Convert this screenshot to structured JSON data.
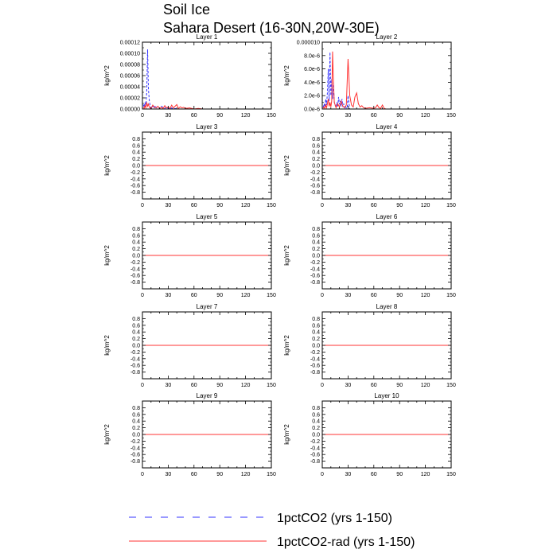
{
  "figure": {
    "title_line1": "Soil Ice",
    "title_line2": "Sahara Desert (16-30N,20W-30E)"
  },
  "legend": {
    "items": [
      {
        "label": "1pctCO2 (yrs 1-150)",
        "color": "#3333ff",
        "style": "dashed"
      },
      {
        "label": "1pctCO2-rad (yrs 1-150)",
        "color": "#ff3333",
        "style": "solid"
      }
    ]
  },
  "chart_data": [
    {
      "type": "line",
      "title": "Layer 1",
      "ylabel": "kg/m^2",
      "xlim": [
        0,
        150
      ],
      "ylim": [
        0,
        0.00012
      ],
      "x_ticks": [
        "0",
        "30",
        "60",
        "90",
        "120",
        "150"
      ],
      "y_ticks": [
        "0.00000",
        "0.00002",
        "0.00004",
        "0.00006",
        "0.00008",
        "0.00010",
        "0.00012"
      ],
      "series": [
        {
          "name": "1pctCO2 (yrs 1-150)",
          "color": "#3333ff",
          "dash": true,
          "x": [
            1,
            2,
            3,
            4,
            5,
            6,
            7,
            8,
            9,
            10,
            11,
            12,
            13,
            14,
            15,
            16,
            18,
            20,
            22,
            24,
            26,
            28,
            30,
            32,
            34,
            36,
            38,
            40,
            45,
            50,
            150
          ],
          "y": [
            8e-06,
            3e-06,
            1.2e-05,
            4e-06,
            3e-05,
            0.000107,
            3.5e-05,
            1.5e-05,
            6e-06,
            2e-06,
            1e-06,
            5e-06,
            4e-06,
            1e-06,
            6e-06,
            2e-06,
            4e-06,
            1e-06,
            5e-06,
            3e-06,
            1e-06,
            4e-06,
            1e-06,
            0,
            2e-06,
            0,
            1e-06,
            0,
            0,
            0,
            0
          ]
        },
        {
          "name": "1pctCO2-rad (yrs 1-150)",
          "color": "#ff3333",
          "dash": false,
          "x": [
            1,
            2,
            3,
            4,
            5,
            6,
            7,
            8,
            9,
            10,
            12,
            14,
            16,
            18,
            20,
            22,
            24,
            26,
            28,
            30,
            32,
            34,
            36,
            38,
            40,
            42,
            44,
            46,
            48,
            50,
            55,
            60,
            65,
            70,
            150
          ],
          "y": [
            3e-06,
            1e-06,
            6e-06,
            2e-06,
            1.2e-05,
            5e-06,
            9e-06,
            3e-06,
            2e-06,
            1e-06,
            7e-06,
            3e-06,
            2e-06,
            5e-06,
            1e-06,
            3e-06,
            1e-06,
            6e-06,
            2e-06,
            4e-06,
            1e-06,
            7e-06,
            2e-06,
            5e-06,
            8e-06,
            1e-06,
            4e-06,
            2e-06,
            3e-06,
            1e-06,
            2e-06,
            0,
            1e-06,
            0,
            0
          ]
        }
      ]
    },
    {
      "type": "line",
      "title": "Layer 2",
      "ylabel": "kg/m^2",
      "xlim": [
        0,
        150
      ],
      "ylim": [
        0,
        1e-05
      ],
      "x_ticks": [
        "0",
        "30",
        "60",
        "90",
        "120",
        "150"
      ],
      "y_ticks": [
        "0.0e-6",
        "2.0e-6",
        "4.0e-6",
        "6.0e-6",
        "8.0e-6",
        "0.000010"
      ],
      "series": [
        {
          "name": "1pctCO2 (yrs 1-150)",
          "color": "#3333ff",
          "dash": true,
          "x": [
            1,
            2,
            3,
            4,
            5,
            6,
            7,
            8,
            9,
            10,
            11,
            12,
            13,
            14,
            15,
            16,
            17,
            18,
            19,
            20,
            21,
            22,
            23,
            24,
            25,
            26,
            27,
            28,
            29,
            30,
            32,
            34,
            150
          ],
          "y": [
            2e-07,
            8e-07,
            3e-07,
            1.5e-06,
            6e-07,
            2.5e-06,
            6e-06,
            1.2e-06,
            8.5e-06,
            2e-06,
            4.5e-06,
            1.5e-06,
            4e-06,
            1e-06,
            6e-07,
            2e-07,
            1e-06,
            4e-07,
            1.8e-06,
            7e-07,
            1.2e-06,
            4e-07,
            1.5e-06,
            3e-07,
            8e-07,
            2e-07,
            5e-07,
            1e-07,
            2e-07,
            2e-06,
            0,
            0,
            0
          ]
        },
        {
          "name": "1pctCO2-rad (yrs 1-150)",
          "color": "#ff3333",
          "dash": false,
          "x": [
            1,
            2,
            3,
            4,
            5,
            6,
            7,
            8,
            9,
            10,
            11,
            12,
            13,
            14,
            15,
            16,
            18,
            20,
            22,
            24,
            26,
            28,
            30,
            32,
            34,
            36,
            38,
            40,
            42,
            44,
            46,
            48,
            50,
            55,
            60,
            62,
            64,
            66,
            68,
            70,
            72,
            74,
            150
          ],
          "y": [
            1e-07,
            3e-07,
            1e-07,
            6e-07,
            2e-07,
            8e-07,
            1.5e-06,
            4e-07,
            1e-06,
            3e-07,
            1.2e-06,
            8.6e-06,
            4e-06,
            1e-06,
            6e-07,
            2e-07,
            8e-07,
            3e-07,
            1.2e-06,
            4e-07,
            2e-07,
            6e-07,
            7.5e-06,
            2e-06,
            6e-07,
            3e-07,
            1.8e-06,
            2.4e-06,
            8e-07,
            3e-07,
            5e-07,
            2e-07,
            1e-07,
            2e-07,
            1e-07,
            2e-07,
            6e-07,
            2e-07,
            1e-07,
            6e-07,
            1e-07,
            0,
            0
          ]
        }
      ]
    },
    {
      "type": "line",
      "title": "Layer 3",
      "ylabel": "kg/m^2",
      "xlim": [
        0,
        150
      ],
      "ylim": [
        -1,
        1
      ],
      "x_ticks": [
        "0",
        "30",
        "60",
        "90",
        "120",
        "150"
      ],
      "y_ticks": [
        "-0.8",
        "-0.6",
        "-0.4",
        "-0.2",
        "0.0",
        "0.2",
        "0.4",
        "0.6",
        "0.8"
      ],
      "series": [
        {
          "name": "1pctCO2 (yrs 1-150)",
          "color": "#3333ff",
          "dash": true,
          "x": [
            0,
            150
          ],
          "y": [
            0,
            0
          ]
        },
        {
          "name": "1pctCO2-rad (yrs 1-150)",
          "color": "#ff3333",
          "dash": false,
          "x": [
            0,
            150
          ],
          "y": [
            0,
            0
          ]
        }
      ]
    },
    {
      "type": "line",
      "title": "Layer 4",
      "ylabel": "kg/m^2",
      "xlim": [
        0,
        150
      ],
      "ylim": [
        -1,
        1
      ],
      "x_ticks": [
        "0",
        "30",
        "60",
        "90",
        "120",
        "150"
      ],
      "y_ticks": [
        "-0.8",
        "-0.6",
        "-0.4",
        "-0.2",
        "0.0",
        "0.2",
        "0.4",
        "0.6",
        "0.8"
      ],
      "series": [
        {
          "name": "1pctCO2 (yrs 1-150)",
          "color": "#3333ff",
          "dash": true,
          "x": [
            0,
            150
          ],
          "y": [
            0,
            0
          ]
        },
        {
          "name": "1pctCO2-rad (yrs 1-150)",
          "color": "#ff3333",
          "dash": false,
          "x": [
            0,
            150
          ],
          "y": [
            0,
            0
          ]
        }
      ]
    },
    {
      "type": "line",
      "title": "Layer 5",
      "ylabel": "kg/m^2",
      "xlim": [
        0,
        150
      ],
      "ylim": [
        -1,
        1
      ],
      "x_ticks": [
        "0",
        "30",
        "60",
        "90",
        "120",
        "150"
      ],
      "y_ticks": [
        "-0.8",
        "-0.6",
        "-0.4",
        "-0.2",
        "0.0",
        "0.2",
        "0.4",
        "0.6",
        "0.8"
      ],
      "series": [
        {
          "name": "1pctCO2 (yrs 1-150)",
          "color": "#3333ff",
          "dash": true,
          "x": [
            0,
            150
          ],
          "y": [
            0,
            0
          ]
        },
        {
          "name": "1pctCO2-rad (yrs 1-150)",
          "color": "#ff3333",
          "dash": false,
          "x": [
            0,
            150
          ],
          "y": [
            0,
            0
          ]
        }
      ]
    },
    {
      "type": "line",
      "title": "Layer 6",
      "ylabel": "kg/m^2",
      "xlim": [
        0,
        150
      ],
      "ylim": [
        -1,
        1
      ],
      "x_ticks": [
        "0",
        "30",
        "60",
        "90",
        "120",
        "150"
      ],
      "y_ticks": [
        "-0.8",
        "-0.6",
        "-0.4",
        "-0.2",
        "0.0",
        "0.2",
        "0.4",
        "0.6",
        "0.8"
      ],
      "series": [
        {
          "name": "1pctCO2 (yrs 1-150)",
          "color": "#3333ff",
          "dash": true,
          "x": [
            0,
            150
          ],
          "y": [
            0,
            0
          ]
        },
        {
          "name": "1pctCO2-rad (yrs 1-150)",
          "color": "#ff3333",
          "dash": false,
          "x": [
            0,
            150
          ],
          "y": [
            0,
            0
          ]
        }
      ]
    },
    {
      "type": "line",
      "title": "Layer 7",
      "ylabel": "kg/m^2",
      "xlim": [
        0,
        150
      ],
      "ylim": [
        -1,
        1
      ],
      "x_ticks": [
        "0",
        "30",
        "60",
        "90",
        "120",
        "150"
      ],
      "y_ticks": [
        "-0.8",
        "-0.6",
        "-0.4",
        "-0.2",
        "0.0",
        "0.2",
        "0.4",
        "0.6",
        "0.8"
      ],
      "series": [
        {
          "name": "1pctCO2 (yrs 1-150)",
          "color": "#3333ff",
          "dash": true,
          "x": [
            0,
            150
          ],
          "y": [
            0,
            0
          ]
        },
        {
          "name": "1pctCO2-rad (yrs 1-150)",
          "color": "#ff3333",
          "dash": false,
          "x": [
            0,
            150
          ],
          "y": [
            0,
            0
          ]
        }
      ]
    },
    {
      "type": "line",
      "title": "Layer 8",
      "ylabel": "kg/m^2",
      "xlim": [
        0,
        150
      ],
      "ylim": [
        -1,
        1
      ],
      "x_ticks": [
        "0",
        "30",
        "60",
        "90",
        "120",
        "150"
      ],
      "y_ticks": [
        "-0.8",
        "-0.6",
        "-0.4",
        "-0.2",
        "0.0",
        "0.2",
        "0.4",
        "0.6",
        "0.8"
      ],
      "series": [
        {
          "name": "1pctCO2 (yrs 1-150)",
          "color": "#3333ff",
          "dash": true,
          "x": [
            0,
            150
          ],
          "y": [
            0,
            0
          ]
        },
        {
          "name": "1pctCO2-rad (yrs 1-150)",
          "color": "#ff3333",
          "dash": false,
          "x": [
            0,
            150
          ],
          "y": [
            0,
            0
          ]
        }
      ]
    },
    {
      "type": "line",
      "title": "Layer 9",
      "ylabel": "kg/m^2",
      "xlim": [
        0,
        150
      ],
      "ylim": [
        -1,
        1
      ],
      "x_ticks": [
        "0",
        "30",
        "60",
        "90",
        "120",
        "150"
      ],
      "y_ticks": [
        "-0.8",
        "-0.6",
        "-0.4",
        "-0.2",
        "0.0",
        "0.2",
        "0.4",
        "0.6",
        "0.8"
      ],
      "series": [
        {
          "name": "1pctCO2 (yrs 1-150)",
          "color": "#3333ff",
          "dash": true,
          "x": [
            0,
            150
          ],
          "y": [
            0,
            0
          ]
        },
        {
          "name": "1pctCO2-rad (yrs 1-150)",
          "color": "#ff3333",
          "dash": false,
          "x": [
            0,
            150
          ],
          "y": [
            0,
            0
          ]
        }
      ]
    },
    {
      "type": "line",
      "title": "Layer 10",
      "ylabel": "kg/m^2",
      "xlim": [
        0,
        150
      ],
      "ylim": [
        -1,
        1
      ],
      "x_ticks": [
        "0",
        "30",
        "60",
        "90",
        "120",
        "150"
      ],
      "y_ticks": [
        "-0.8",
        "-0.6",
        "-0.4",
        "-0.2",
        "0.0",
        "0.2",
        "0.4",
        "0.6",
        "0.8"
      ],
      "series": [
        {
          "name": "1pctCO2 (yrs 1-150)",
          "color": "#3333ff",
          "dash": true,
          "x": [
            0,
            150
          ],
          "y": [
            0,
            0
          ]
        },
        {
          "name": "1pctCO2-rad (yrs 1-150)",
          "color": "#ff3333",
          "dash": false,
          "x": [
            0,
            150
          ],
          "y": [
            0,
            0
          ]
        }
      ]
    }
  ]
}
